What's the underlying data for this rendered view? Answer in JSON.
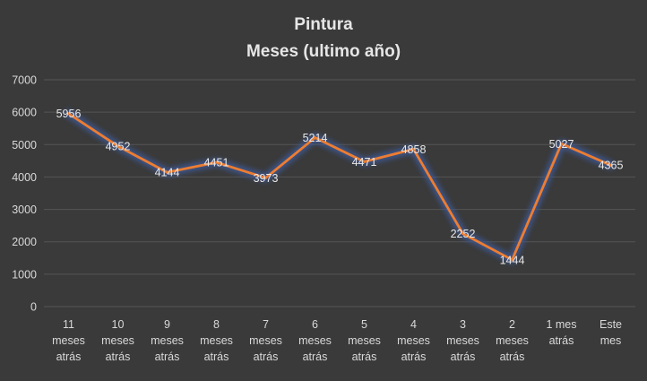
{
  "chart_data": {
    "type": "line",
    "title": "Pintura",
    "subtitle": "Meses (ultimo año)",
    "xlabel": "",
    "ylabel": "",
    "categories": [
      "11 meses atrás",
      "10 meses atrás",
      "9 meses atrás",
      "8 meses atrás",
      "7 meses atrás",
      "6 meses atrás",
      "5 meses atrás",
      "4 meses atrás",
      "3 meses atrás",
      "2 meses atrás",
      "1 mes atrás",
      "Este mes"
    ],
    "values": [
      5956,
      4952,
      4144,
      4451,
      3973,
      5214,
      4471,
      4858,
      2252,
      1444,
      5027,
      4365
    ],
    "ylim": [
      0,
      7000
    ],
    "y_ticks": [
      0,
      1000,
      2000,
      3000,
      4000,
      5000,
      6000,
      7000
    ],
    "grid": true,
    "legend": "none",
    "colors": {
      "background": "#3a3a3a",
      "line": "#ed7d31",
      "glow": "#3d5a99",
      "text": "#d9d9d9",
      "grid": "#555555"
    }
  }
}
